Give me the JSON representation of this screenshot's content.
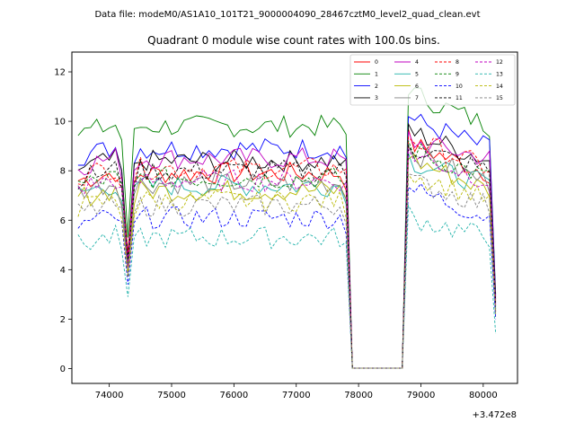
{
  "figure": {
    "suptitle": "Data file: modeM0/AS1A10_101T21_9000004090_28467cztM0_level2_quad_clean.evt",
    "title": "Quadrant 0 module wise count rates with 100.0s bins.",
    "x_offset_label": "+3.472e8"
  },
  "chart_data": {
    "type": "line",
    "title": "Quadrant 0 module wise count rates with 100.0s bins.",
    "xlabel": "",
    "ylabel": "",
    "x_offset": 347200000,
    "xlim": [
      73400,
      80550
    ],
    "ylim": [
      -0.6,
      12.8
    ],
    "xticks": [
      74000,
      75000,
      76000,
      77000,
      78000,
      79000,
      80000
    ],
    "yticks": [
      0,
      2,
      4,
      6,
      8,
      10,
      12
    ],
    "xtick_labels": [
      "74000",
      "75000",
      "76000",
      "77000",
      "78000",
      "79000",
      "80000"
    ],
    "ytick_labels": [
      "0",
      "2",
      "4",
      "6",
      "8",
      "10",
      "12"
    ],
    "grid": false,
    "legend_position": "top-right",
    "gap": [
      78000,
      78700
    ],
    "series": [
      {
        "name": "0",
        "color": "#ff0000",
        "dash": false,
        "level": 7.9,
        "dip": 4.6,
        "post": 9.1,
        "end": 2.3
      },
      {
        "name": "1",
        "color": "#008000",
        "dash": false,
        "level": 9.8,
        "dip": 5.3,
        "post": 11.2,
        "end": 3.0
      },
      {
        "name": "2",
        "color": "#0000ff",
        "dash": false,
        "level": 8.9,
        "dip": 4.4,
        "post": 10.1,
        "end": 2.9
      },
      {
        "name": "3",
        "color": "#000000",
        "dash": false,
        "level": 8.4,
        "dip": 4.5,
        "post": 9.6,
        "end": 2.8
      },
      {
        "name": "4",
        "color": "#c000c0",
        "dash": false,
        "level": 8.5,
        "dip": 4.3,
        "post": 9.2,
        "end": 2.6
      },
      {
        "name": "5",
        "color": "#20b2aa",
        "dash": false,
        "level": 7.4,
        "dip": 4.0,
        "post": 8.4,
        "end": 2.4
      },
      {
        "name": "6",
        "color": "#b8b800",
        "dash": false,
        "level": 7.2,
        "dip": 3.9,
        "post": 8.5,
        "end": 2.3
      },
      {
        "name": "7",
        "color": "#808080",
        "dash": false,
        "level": 7.5,
        "dip": 4.1,
        "post": 8.8,
        "end": 2.4
      },
      {
        "name": "8",
        "color": "#ff0000",
        "dash": true,
        "level": 8.1,
        "dip": 4.7,
        "post": 9.3,
        "end": 2.7
      },
      {
        "name": "9",
        "color": "#008000",
        "dash": true,
        "level": 7.7,
        "dip": 4.2,
        "post": 8.9,
        "end": 2.5
      },
      {
        "name": "10",
        "color": "#0000ff",
        "dash": true,
        "level": 6.1,
        "dip": 3.4,
        "post": 7.3,
        "end": 2.0
      },
      {
        "name": "11",
        "color": "#000000",
        "dash": true,
        "level": 8.0,
        "dip": 4.4,
        "post": 9.0,
        "end": 2.6
      },
      {
        "name": "12",
        "color": "#c000c0",
        "dash": true,
        "level": 7.6,
        "dip": 4.1,
        "post": 8.7,
        "end": 2.5
      },
      {
        "name": "13",
        "color": "#20b2aa",
        "dash": true,
        "level": 5.3,
        "dip": 2.9,
        "post": 6.1,
        "end": 1.4
      },
      {
        "name": "14",
        "color": "#b8b800",
        "dash": true,
        "level": 6.8,
        "dip": 3.7,
        "post": 7.9,
        "end": 2.2
      },
      {
        "name": "15",
        "color": "#808080",
        "dash": true,
        "level": 6.6,
        "dip": 3.8,
        "post": 7.6,
        "end": 2.1
      }
    ]
  }
}
